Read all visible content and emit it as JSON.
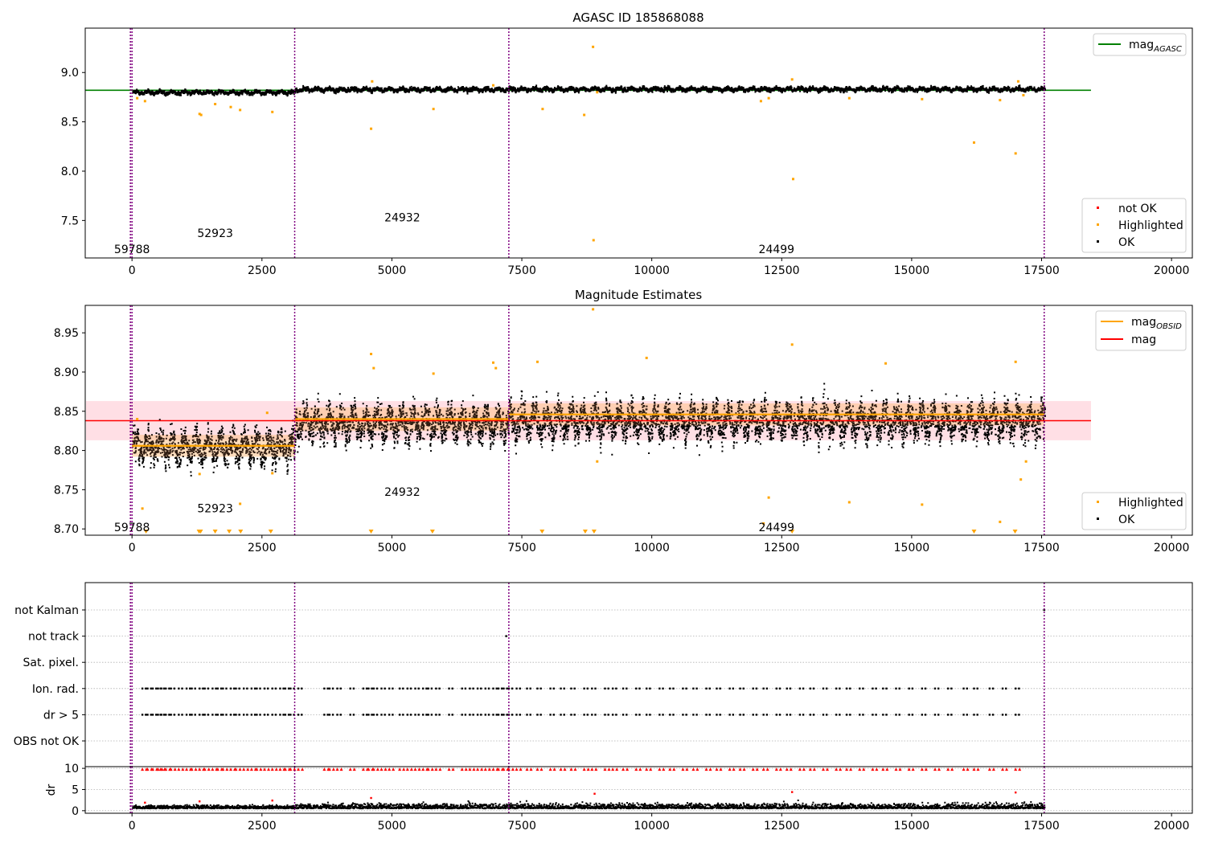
{
  "figure": {
    "colors": {
      "ok": "#000000",
      "highlighted": "#ffa500",
      "not_ok": "#ff0000",
      "mag_agasc": "#008000",
      "mag": "#ff0000",
      "mag_obsid": "#ffa500",
      "band": "#ffc0cb",
      "obsid_boundary": "#800080",
      "grid": "#b0b0b0"
    }
  },
  "chart_data": [
    {
      "type": "scatter",
      "title": "AGASC ID 185868088",
      "xlim": [
        -900,
        20400
      ],
      "ylim": [
        7.12,
        9.45
      ],
      "x_ticks": [
        0,
        2500,
        5000,
        7500,
        10000,
        12500,
        15000,
        17500,
        20000
      ],
      "x_tick_labels": [
        "0",
        "2500",
        "5000",
        "7500",
        "10000",
        "12500",
        "15000",
        "17500",
        "20000"
      ],
      "y_ticks": [
        7.5,
        8.0,
        8.5,
        9.0
      ],
      "y_tick_labels": [
        "7.5",
        "8.0",
        "8.5",
        "9.0"
      ],
      "grid": false,
      "obsid_boundaries": [
        0,
        3130,
        7250,
        17550
      ],
      "obsid_labels": [
        {
          "text": "59788",
          "x": 0,
          "y": 7.17
        },
        {
          "text": "52923",
          "x": 1600,
          "y": 7.33
        },
        {
          "text": "24932",
          "x": 5200,
          "y": 7.49
        },
        {
          "text": "24499",
          "x": 12400,
          "y": 7.17
        }
      ],
      "lines": [
        {
          "name": "mag",
          "sub": "AGASC",
          "value": 8.82,
          "x_range": [
            -900,
            18450
          ]
        }
      ],
      "ok_segments": [
        {
          "x_range": [
            0,
            3130
          ],
          "center": 8.805,
          "spread": 0.012
        },
        {
          "x_range": [
            3130,
            7250
          ],
          "center": 8.835,
          "spread": 0.013
        },
        {
          "x_range": [
            7250,
            17550
          ],
          "center": 8.838,
          "spread": 0.013
        }
      ],
      "highlighted_points": [
        [
          100,
          8.74
        ],
        [
          250,
          8.71
        ],
        [
          1300,
          8.58
        ],
        [
          1330,
          8.57
        ],
        [
          1600,
          8.68
        ],
        [
          1900,
          8.65
        ],
        [
          2080,
          8.62
        ],
        [
          2700,
          8.6
        ],
        [
          4600,
          8.43
        ],
        [
          4620,
          8.91
        ],
        [
          5800,
          8.63
        ],
        [
          6950,
          8.87
        ],
        [
          7900,
          8.63
        ],
        [
          8700,
          8.57
        ],
        [
          8870,
          9.26
        ],
        [
          8880,
          7.3
        ],
        [
          8950,
          8.8
        ],
        [
          12100,
          8.71
        ],
        [
          12250,
          8.74
        ],
        [
          12700,
          8.93
        ],
        [
          12720,
          7.92
        ],
        [
          13800,
          8.74
        ],
        [
          15200,
          8.73
        ],
        [
          16200,
          8.29
        ],
        [
          16700,
          8.72
        ],
        [
          17000,
          8.18
        ],
        [
          17050,
          8.91
        ],
        [
          17150,
          8.77
        ]
      ],
      "not_ok_points": [],
      "legend_upper": {
        "position": "upper-right",
        "entries": [
          {
            "name": "mag",
            "sub": "AGASC"
          }
        ]
      },
      "legend_lower": {
        "position": "lower-right",
        "entries": [
          "not OK",
          "Highlighted",
          "OK"
        ]
      }
    },
    {
      "type": "scatter",
      "title": "Magnitude Estimates",
      "xlim": [
        -900,
        20400
      ],
      "ylim": [
        8.692,
        8.985
      ],
      "x_ticks": [
        0,
        2500,
        5000,
        7500,
        10000,
        12500,
        15000,
        17500,
        20000
      ],
      "x_tick_labels": [
        "0",
        "2500",
        "5000",
        "7500",
        "10000",
        "12500",
        "15000",
        "17500",
        "20000"
      ],
      "y_ticks": [
        8.7,
        8.75,
        8.8,
        8.85,
        8.9,
        8.95
      ],
      "y_tick_labels": [
        "8.70",
        "8.75",
        "8.80",
        "8.85",
        "8.90",
        "8.95"
      ],
      "grid": false,
      "obsid_boundaries": [
        0,
        3130,
        7250,
        17550
      ],
      "obsid_labels": [
        {
          "text": "59788",
          "x": 0,
          "y": 8.697
        },
        {
          "text": "52923",
          "x": 1600,
          "y": 8.721
        },
        {
          "text": "24932",
          "x": 5200,
          "y": 8.742
        },
        {
          "text": "24499",
          "x": 12400,
          "y": 8.697
        }
      ],
      "mag": {
        "value": 8.838,
        "band": [
          8.813,
          8.863
        ],
        "x_range": [
          -900,
          18450
        ]
      },
      "mag_obsid": [
        {
          "x_range": [
            0,
            3130
          ],
          "value": 8.806,
          "band": [
            8.792,
            8.82
          ]
        },
        {
          "x_range": [
            3130,
            7250
          ],
          "value": 8.84,
          "band": [
            8.825,
            8.855
          ]
        },
        {
          "x_range": [
            7250,
            17550
          ],
          "value": 8.846,
          "band": [
            8.832,
            8.86
          ]
        }
      ],
      "ok_segments": [
        {
          "x_range": [
            0,
            3130
          ],
          "center": 8.805,
          "spread": 0.012
        },
        {
          "x_range": [
            3130,
            7250
          ],
          "center": 8.835,
          "spread": 0.013
        },
        {
          "x_range": [
            7250,
            17550
          ],
          "center": 8.838,
          "spread": 0.013
        }
      ],
      "highlighted_points": [
        [
          100,
          8.84
        ],
        [
          200,
          8.726
        ],
        [
          1300,
          8.77
        ],
        [
          2080,
          8.732
        ],
        [
          2700,
          8.771
        ],
        [
          2600,
          8.848
        ],
        [
          4600,
          8.923
        ],
        [
          4650,
          8.905
        ],
        [
          5800,
          8.898
        ],
        [
          6950,
          8.912
        ],
        [
          7000,
          8.905
        ],
        [
          7800,
          8.913
        ],
        [
          8870,
          8.98
        ],
        [
          8950,
          8.786
        ],
        [
          9900,
          8.918
        ],
        [
          12150,
          8.707
        ],
        [
          12250,
          8.74
        ],
        [
          12700,
          8.935
        ],
        [
          13800,
          8.734
        ],
        [
          14500,
          8.911
        ],
        [
          15200,
          8.731
        ],
        [
          16700,
          8.709
        ],
        [
          17000,
          8.913
        ],
        [
          17100,
          8.763
        ],
        [
          17200,
          8.786
        ]
      ],
      "offscale_markers_x": [
        270,
        1290,
        1320,
        1600,
        1870,
        2090,
        2670,
        4600,
        5780,
        7890,
        8720,
        8890,
        12700,
        16200,
        16990
      ],
      "legend_upper": {
        "position": "upper-right",
        "entries": [
          {
            "name": "mag",
            "sub": "OBSID"
          },
          {
            "name": "mag",
            "sub": ""
          }
        ]
      },
      "legend_lower": {
        "position": "lower-right",
        "entries": [
          "Highlighted",
          "OK"
        ]
      }
    },
    {
      "type": "scatter",
      "title": "",
      "xlim": [
        -900,
        20400
      ],
      "grid": true,
      "obsid_boundaries": [
        0,
        3130,
        7250,
        17550
      ],
      "flag_rows": [
        "not Kalman",
        "not track",
        "Sat. pixel.",
        "Ion. rad.",
        "dr > 5",
        "OBS not OK"
      ],
      "flag_events": {
        "not Kalman": [
          17550
        ],
        "not track": [
          7200
        ],
        "Sat. pixel.": [],
        "Ion. rad.": [
          200,
          300,
          400,
          500,
          550,
          650,
          750,
          900,
          1050,
          1150,
          1300,
          1400,
          1550,
          1650,
          1750,
          1900,
          2000,
          2150,
          2300,
          2400,
          2550,
          2700,
          2850,
          2950,
          3050,
          3200,
          3700,
          3800,
          3950,
          4200,
          4450,
          4550,
          4650,
          4800,
          4950,
          5150,
          5300,
          5450,
          5600,
          5700,
          5850,
          6100,
          6350,
          6500,
          6650,
          6800,
          6950,
          7050,
          7150,
          7250,
          7400,
          7600,
          7800,
          8050,
          8250,
          8450,
          8700,
          8850,
          9100,
          9250,
          9450,
          9700,
          9900,
          10150,
          10350,
          10600,
          10800,
          11050,
          11250,
          11500,
          11700,
          11950,
          12150,
          12400,
          12600,
          12850,
          13050,
          13300,
          13550,
          13750,
          14000,
          14250,
          14450,
          14700,
          14950,
          15200,
          15450,
          15700,
          16000,
          16200,
          16500,
          16750,
          17000
        ],
        "dr > 5": [
          200,
          300,
          400,
          500,
          550,
          650,
          750,
          900,
          1050,
          1150,
          1300,
          1400,
          1550,
          1650,
          1750,
          1900,
          2000,
          2150,
          2300,
          2400,
          2550,
          2700,
          2850,
          2950,
          3050,
          3200,
          3700,
          3800,
          3950,
          4200,
          4450,
          4550,
          4650,
          4800,
          4950,
          5150,
          5300,
          5450,
          5600,
          5700,
          5850,
          6100,
          6350,
          6500,
          6650,
          6800,
          6950,
          7050,
          7150,
          7250,
          7400,
          7600,
          7800,
          8050,
          8250,
          8450,
          8700,
          8850,
          9100,
          9250,
          9450,
          9700,
          9900,
          10150,
          10350,
          10600,
          10800,
          11050,
          11250,
          11500,
          11700,
          11950,
          12150,
          12400,
          12600,
          12850,
          13050,
          13300,
          13550,
          13750,
          14000,
          14250,
          14450,
          14700,
          14950,
          15200,
          15450,
          15700,
          16000,
          16200,
          16500,
          16750,
          17000
        ],
        "OBS not OK": []
      }
    },
    {
      "type": "scatter",
      "title": "",
      "ylabel": "dr",
      "xlim": [
        -900,
        20400
      ],
      "ylim": [
        -0.6,
        10.4
      ],
      "x_ticks": [
        0,
        2500,
        5000,
        7500,
        10000,
        12500,
        15000,
        17500,
        20000
      ],
      "x_tick_labels": [
        "0",
        "2500",
        "5000",
        "7500",
        "10000",
        "12500",
        "15000",
        "17500",
        "20000"
      ],
      "y_ticks": [
        0,
        5,
        10
      ],
      "y_tick_labels": [
        "0",
        "5",
        "10"
      ],
      "grid": true,
      "obsid_boundaries": [
        0,
        3130,
        7250,
        17550
      ],
      "ok_level": {
        "center": 0.7,
        "spread": 0.35
      },
      "not_ok_cap": 9.8,
      "not_ok_points": [
        [
          250,
          1.9
        ],
        [
          1300,
          2.2
        ],
        [
          2700,
          2.4
        ],
        [
          4600,
          3.0
        ],
        [
          8900,
          4.0
        ],
        [
          12700,
          4.4
        ],
        [
          17000,
          4.3
        ]
      ]
    }
  ]
}
